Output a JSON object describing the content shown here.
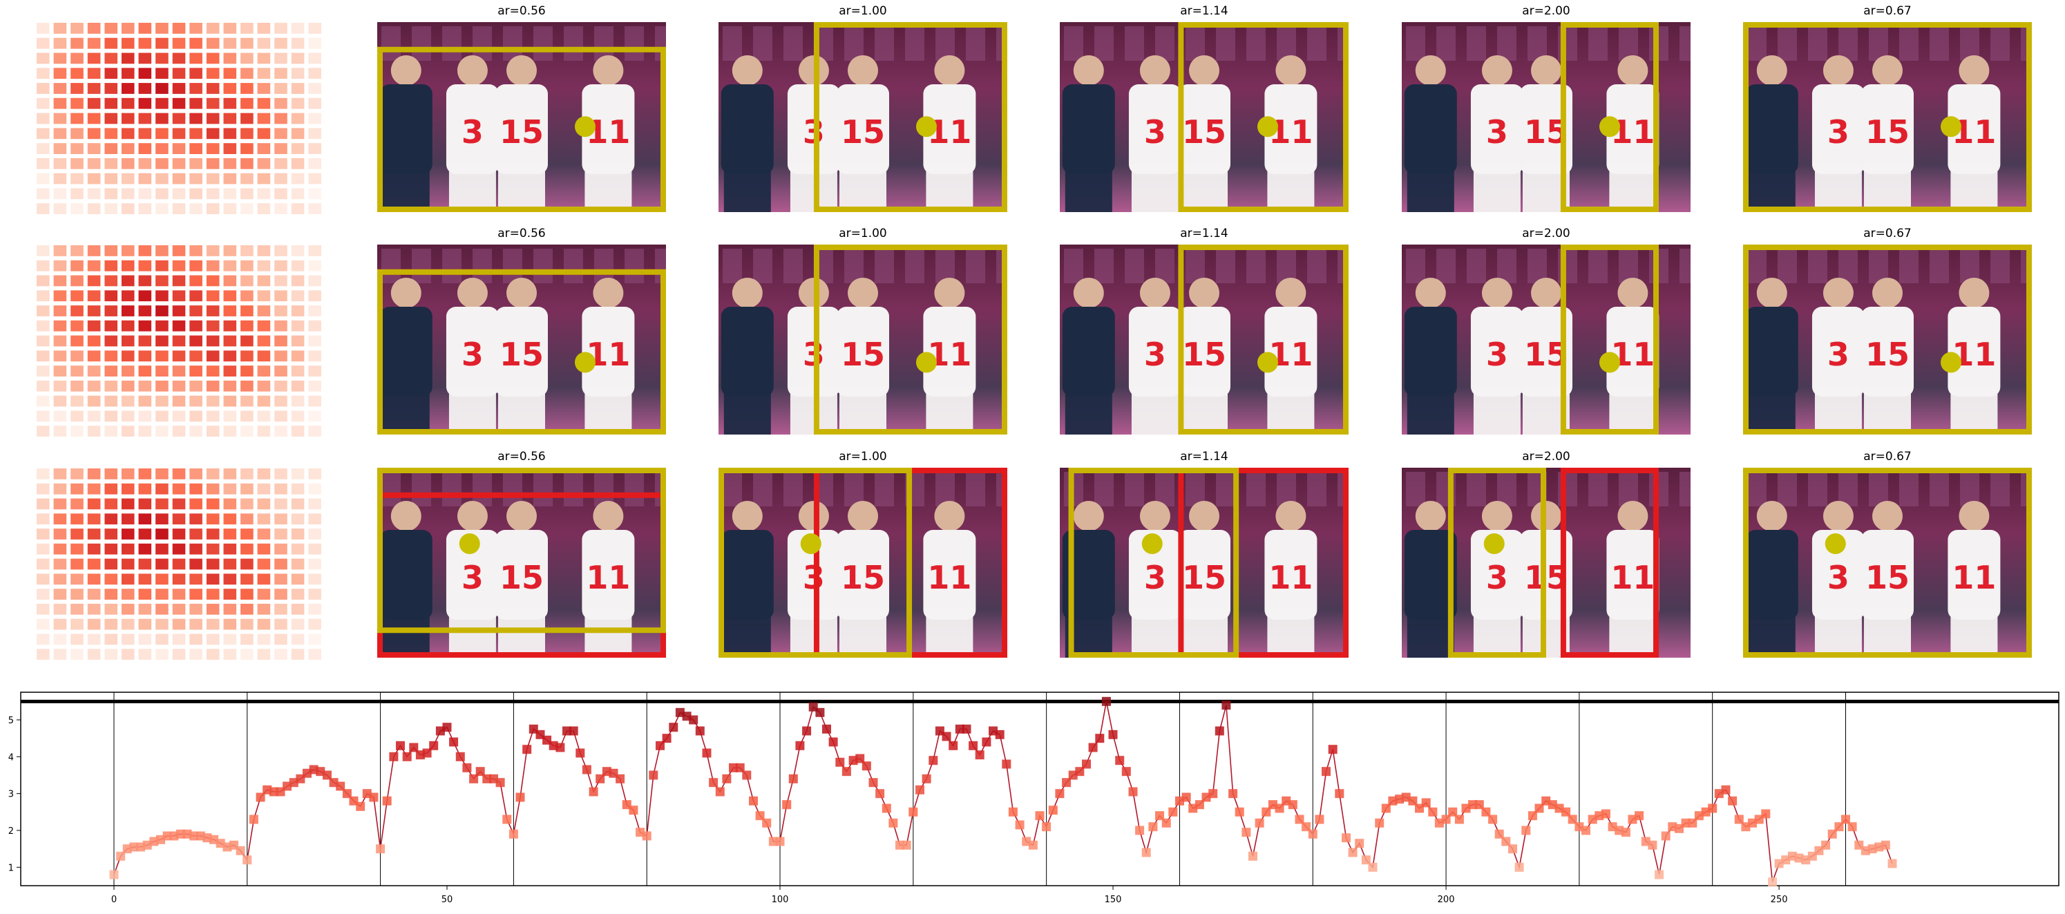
{
  "panels": {
    "columns": [
      {
        "title": "ar=0.56"
      },
      {
        "title": "ar=1.00"
      },
      {
        "title": "ar=1.14"
      },
      {
        "title": "ar=2.00"
      },
      {
        "title": "ar=0.67"
      }
    ],
    "colors": {
      "photo_box": "#c8b400",
      "alt_box": "#e31a1c",
      "dot": "#c8c000"
    }
  },
  "chart_data": {
    "type": "line",
    "title": "",
    "xlabel": "",
    "ylabel": "",
    "xlim": [
      -14,
      292
    ],
    "ylim": [
      0.5,
      5.75
    ],
    "x_ticks": [
      0,
      50,
      100,
      150,
      200,
      250
    ],
    "y_ticks": [
      1,
      2,
      3,
      4,
      5
    ],
    "threshold": 5.5,
    "segment_boundaries": [
      0,
      20,
      40,
      60,
      80,
      100,
      120,
      140,
      160,
      180,
      200,
      220,
      240,
      260
    ],
    "line_color": "#b2182b",
    "marker": "square",
    "series": [
      {
        "values": [
          0.8,
          1.3,
          1.5,
          1.55,
          1.55,
          1.6,
          1.7,
          1.75,
          1.85,
          1.85,
          1.9,
          1.9,
          1.85,
          1.85,
          1.8,
          1.75,
          1.65,
          1.55,
          1.6,
          1.45,
          1.2,
          2.3,
          2.9,
          3.1,
          3.05,
          3.05,
          3.2,
          3.3,
          3.4,
          3.55,
          3.65,
          3.6,
          3.5,
          3.3,
          3.2,
          3.0,
          2.8,
          2.65,
          3.0,
          2.9,
          1.5,
          2.8,
          4.0,
          4.3,
          4.0,
          4.25,
          4.05,
          4.1,
          4.3,
          4.7,
          4.8,
          4.4,
          4.0,
          3.7,
          3.4,
          3.6,
          3.4,
          3.4,
          3.3,
          2.3,
          1.9,
          2.9,
          4.2,
          4.75,
          4.6,
          4.45,
          4.3,
          4.25,
          4.7,
          4.7,
          4.1,
          3.65,
          3.05,
          3.4,
          3.6,
          3.55,
          3.4,
          2.7,
          2.55,
          1.95,
          1.85,
          3.5,
          4.3,
          4.5,
          4.8,
          5.2,
          5.1,
          5.0,
          4.7,
          4.1,
          3.3,
          3.05,
          3.4,
          3.7,
          3.7,
          3.5,
          2.8,
          2.4,
          2.2,
          1.7,
          1.7,
          2.7,
          3.4,
          4.3,
          4.7,
          5.35,
          5.2,
          4.75,
          4.4,
          3.85,
          3.6,
          3.9,
          3.95,
          3.75,
          3.3,
          3.0,
          2.6,
          2.2,
          1.6,
          1.6,
          2.5,
          3.1,
          3.4,
          3.9,
          4.7,
          4.55,
          4.3,
          4.75,
          4.75,
          4.3,
          4.05,
          4.4,
          4.7,
          4.6,
          3.8,
          2.5,
          2.15,
          1.7,
          1.6,
          2.4,
          2.1,
          2.55,
          3.0,
          3.3,
          3.5,
          3.6,
          3.8,
          4.25,
          4.5,
          5.5,
          4.6,
          3.9,
          3.6,
          3.05,
          2.0,
          1.4,
          2.1,
          2.4,
          2.2,
          2.5,
          2.8,
          2.9,
          2.6,
          2.7,
          2.9,
          3.0,
          4.7,
          5.4,
          3.0,
          2.5,
          1.95,
          1.3,
          2.2,
          2.5,
          2.7,
          2.6,
          2.8,
          2.7,
          2.3,
          2.1,
          1.9,
          2.3,
          3.6,
          4.2,
          3.0,
          1.8,
          1.4,
          1.65,
          1.2,
          1.0,
          2.2,
          2.6,
          2.8,
          2.85,
          2.9,
          2.8,
          2.6,
          2.75,
          2.5,
          2.2,
          2.3,
          2.5,
          2.3,
          2.6,
          2.7,
          2.7,
          2.5,
          2.3,
          1.9,
          1.7,
          1.5,
          1.0,
          2.0,
          2.4,
          2.6,
          2.8,
          2.7,
          2.6,
          2.5,
          2.3,
          2.1,
          2.0,
          2.3,
          2.4,
          2.45,
          2.1,
          2.0,
          1.95,
          2.3,
          2.4,
          1.7,
          1.6,
          0.8,
          1.85,
          2.1,
          2.05,
          2.2,
          2.2,
          2.4,
          2.5,
          2.6,
          3.0,
          3.1,
          2.8,
          2.3,
          2.1,
          2.2,
          2.3,
          2.45,
          0.6,
          1.1,
          1.2,
          1.3,
          1.25,
          1.2,
          1.3,
          1.45,
          1.6,
          1.9,
          2.1,
          2.3,
          2.1,
          1.6,
          1.45,
          1.5,
          1.55,
          1.6,
          1.1
        ]
      }
    ]
  }
}
